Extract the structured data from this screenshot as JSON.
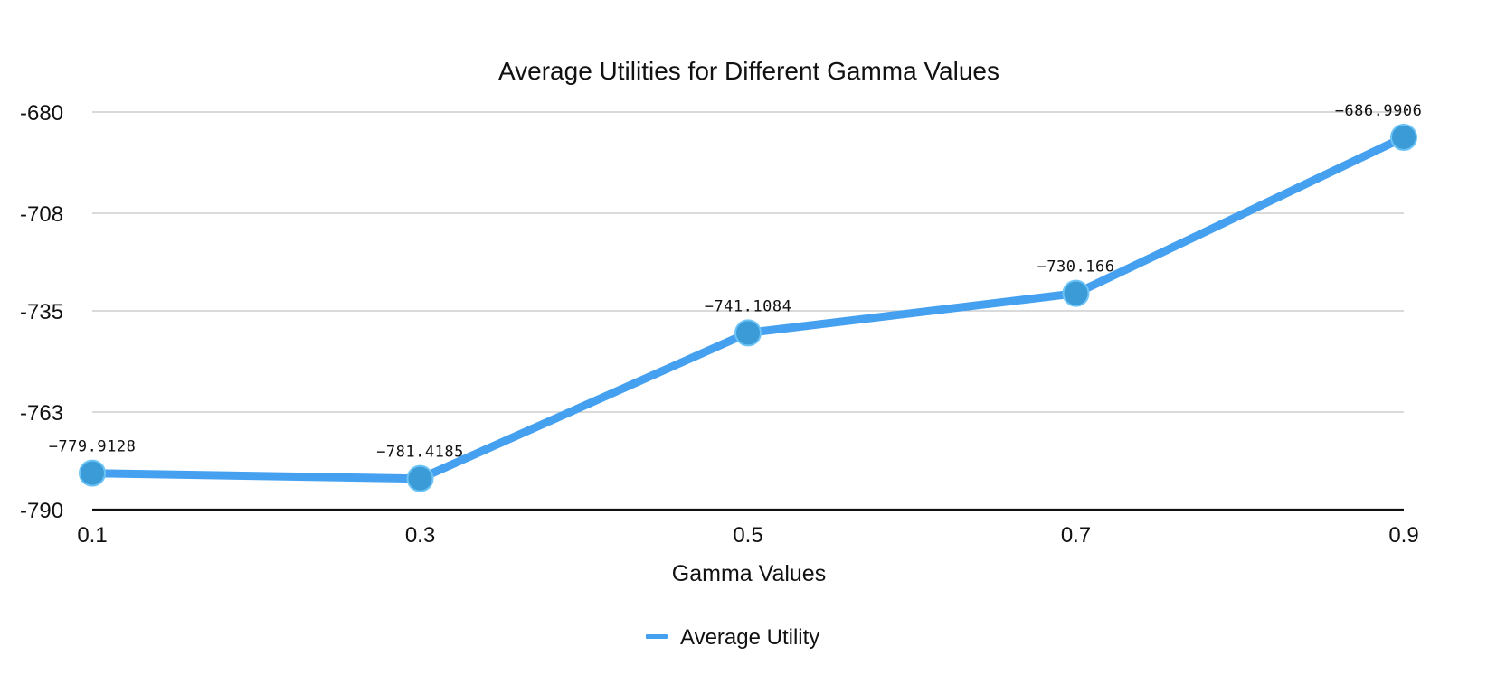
{
  "chart_data": {
    "type": "line",
    "title": "Average Utilities for Different Gamma Values",
    "xlabel": "Gamma Values",
    "ylabel": "",
    "x": [
      0.1,
      0.3,
      0.5,
      0.7,
      0.9
    ],
    "x_tick_labels": [
      "0.1",
      "0.3",
      "0.5",
      "0.7",
      "0.9"
    ],
    "ylim": [
      -790,
      -680
    ],
    "y_ticks": [
      -790,
      -763,
      -735,
      -708,
      -680
    ],
    "y_tick_labels": [
      "-790",
      "-763",
      "-735",
      "-708",
      "-680"
    ],
    "grid": true,
    "legend_position": "bottom",
    "series": [
      {
        "name": "Average Utility",
        "color": "#45a1f0",
        "marker_color": "#3b9bd6",
        "values": [
          -779.9128,
          -781.4185,
          -741.1084,
          -730.166,
          -686.9906
        ],
        "data_labels": [
          "−779.9128",
          "−781.4185",
          "−741.1084",
          "−730.166",
          "−686.9906"
        ]
      }
    ]
  }
}
